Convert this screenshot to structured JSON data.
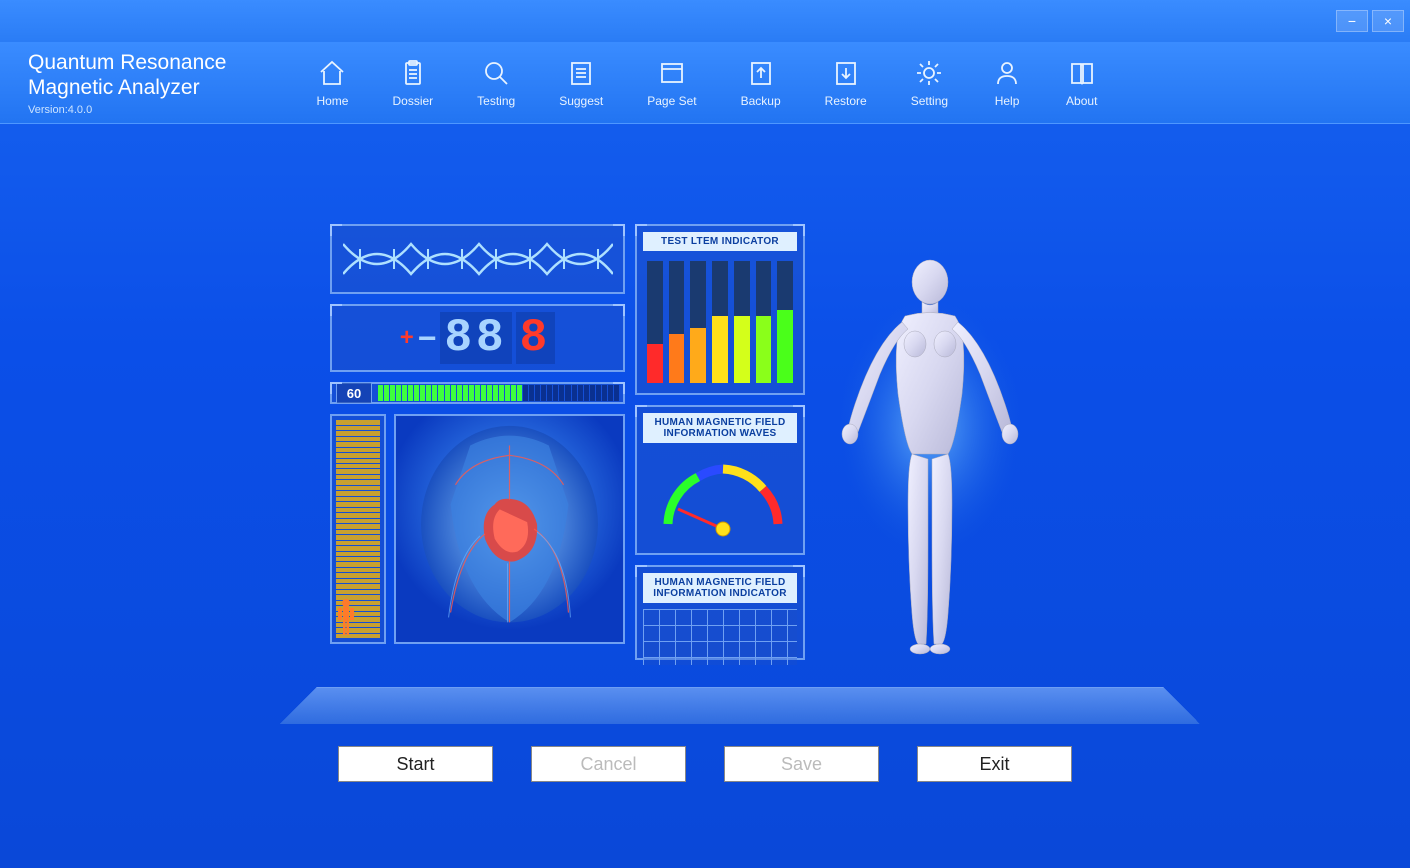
{
  "app": {
    "title_line1": "Quantum Resonance",
    "title_line2": "Magnetic Analyzer",
    "version_label": "Version:4.0.0"
  },
  "window_controls": {
    "minimize": "−",
    "close": "×"
  },
  "toolbar": [
    {
      "id": "home",
      "label": "Home",
      "icon": "home"
    },
    {
      "id": "dossier",
      "label": "Dossier",
      "icon": "clipboard"
    },
    {
      "id": "testing",
      "label": "Testing",
      "icon": "search"
    },
    {
      "id": "suggest",
      "label": "Suggest",
      "icon": "list"
    },
    {
      "id": "pageset",
      "label": "Page Set",
      "icon": "window"
    },
    {
      "id": "backup",
      "label": "Backup",
      "icon": "upload"
    },
    {
      "id": "restore",
      "label": "Restore",
      "icon": "download"
    },
    {
      "id": "setting",
      "label": "Setting",
      "icon": "gear"
    },
    {
      "id": "help",
      "label": "Help",
      "icon": "person"
    },
    {
      "id": "about",
      "label": "About",
      "icon": "book"
    }
  ],
  "digit_display": {
    "plus": "+",
    "minus": "−",
    "digits": "88",
    "last_digit": "8",
    "last_digit_color": "#ff3a2a"
  },
  "progress": {
    "value_label": "60",
    "total_segments": 40,
    "lit_segments": 24,
    "lit_color": "#3eff3e",
    "off_color": "#0a3090"
  },
  "vertical_meter": {
    "segments": 40,
    "segment_color": "#c8a030",
    "human_icon_color": "#ff7a2a"
  },
  "test_indicator": {
    "title": "TEST LTEM INDICATOR",
    "bars": [
      {
        "fill": 0.32,
        "color": "#ff2a2a"
      },
      {
        "fill": 0.4,
        "color": "#ff7a1a"
      },
      {
        "fill": 0.45,
        "color": "#ffaa1a"
      },
      {
        "fill": 0.55,
        "color": "#ffe01a"
      },
      {
        "fill": 0.55,
        "color": "#d4ff1a"
      },
      {
        "fill": 0.55,
        "color": "#8aff1a"
      },
      {
        "fill": 0.6,
        "color": "#4aff1a"
      }
    ],
    "bar_bg": "#1a3a70"
  },
  "gauge": {
    "title_line1": "HUMAN MAGNETIC FIELD",
    "title_line2": "INFORMATION WAVES",
    "arc_colors": [
      "#2aff2a",
      "#2a4aff",
      "#ffe01a",
      "#ff2a2a"
    ],
    "needle_angle_deg": 155,
    "needle_color": "#ff2a2a",
    "knob_color": "#ffe01a"
  },
  "info_indicator": {
    "title_line1": "HUMAN MAGNETIC FIELD",
    "title_line2": "INFORMATION INDICATOR"
  },
  "buttons": {
    "start": {
      "label": "Start",
      "enabled": true
    },
    "cancel": {
      "label": "Cancel",
      "enabled": false
    },
    "save": {
      "label": "Save",
      "enabled": false
    },
    "exit": {
      "label": "Exit",
      "enabled": true
    }
  },
  "colors": {
    "frame_border": "#6fa0f2",
    "bg_gradient_top": "#1864f0",
    "bg_gradient_bottom": "#0a48d8",
    "header_top": "#3a8cff"
  }
}
